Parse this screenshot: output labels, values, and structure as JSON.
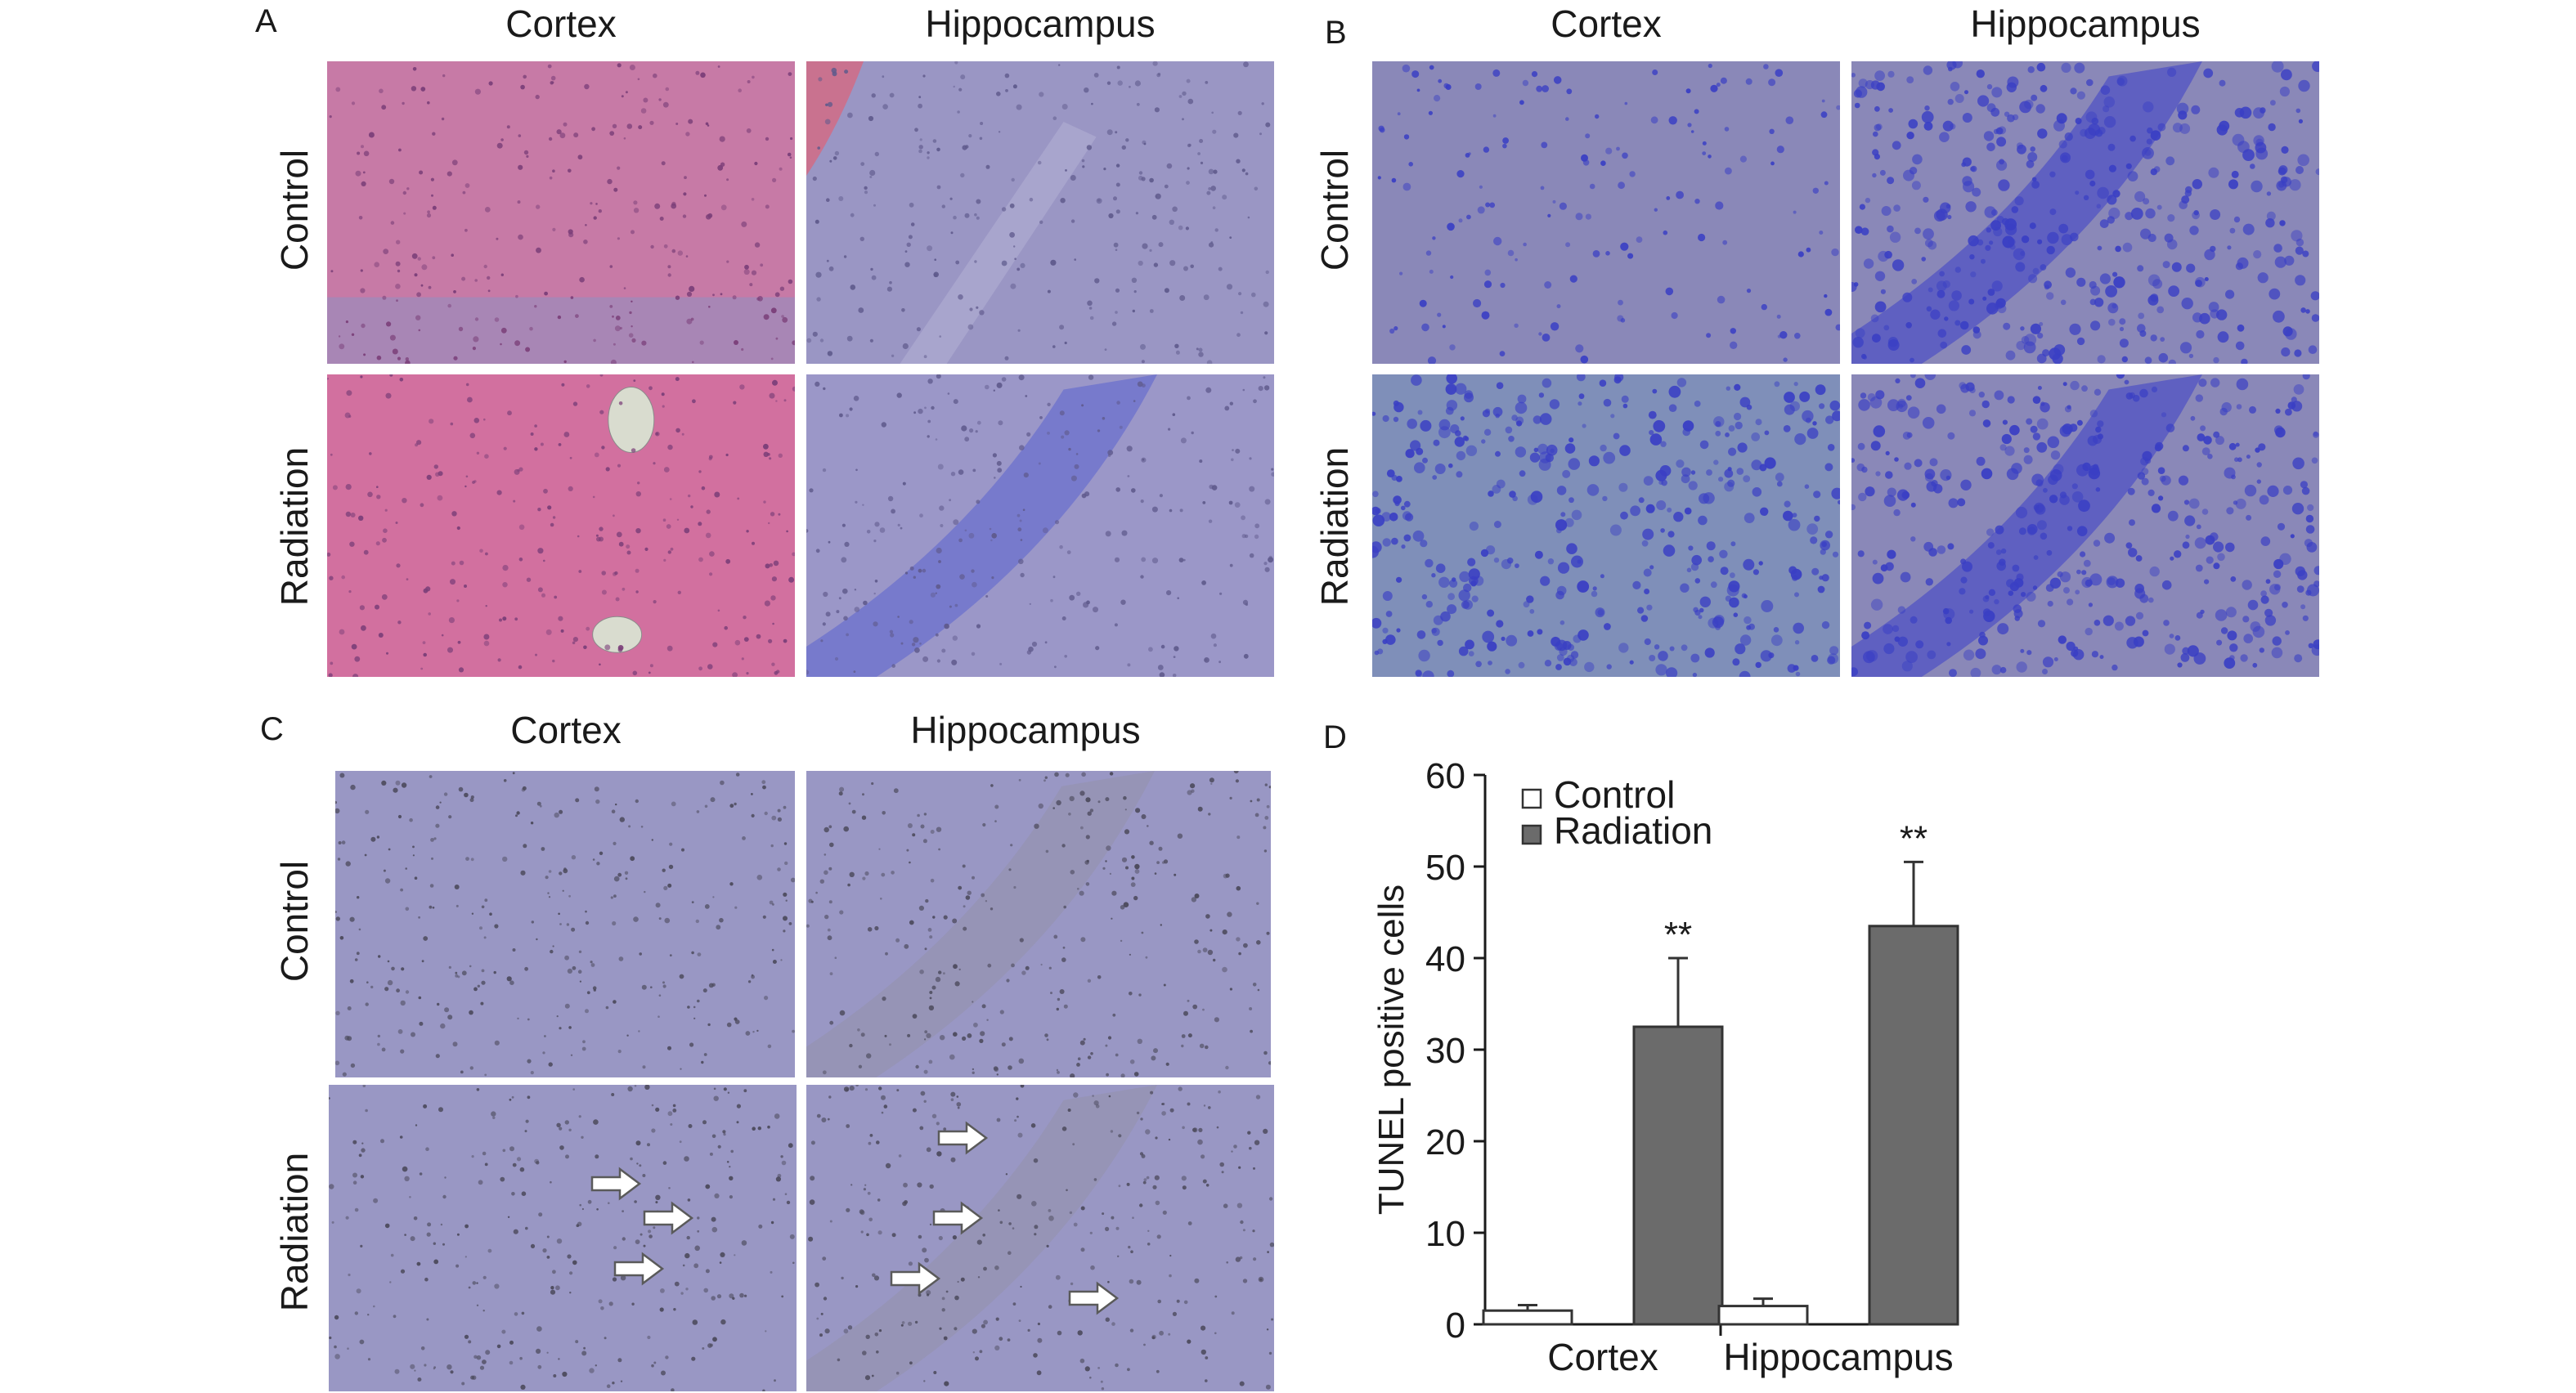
{
  "figure": {
    "panels": [
      {
        "letter": "A",
        "columns": [
          "Cortex",
          "Hippocampus"
        ],
        "rows": [
          "Control",
          "Radiation"
        ],
        "stain_colors": {
          "control_cortex": "#c77aa6",
          "control_hippo": "#9a96c4",
          "radiation_cortex": "#d2709f",
          "radiation_hippo": "#9b97c8"
        }
      },
      {
        "letter": "B",
        "columns": [
          "Cortex",
          "Hippocampus"
        ],
        "rows": [
          "Control",
          "Radiation"
        ],
        "stain_colors": {
          "base": "#8a88b8",
          "nuclei": "#3a3fc4"
        }
      },
      {
        "letter": "C",
        "columns": [
          "Cortex",
          "Hippocampus"
        ],
        "rows": [
          "Control",
          "Radiation"
        ],
        "stain_colors": {
          "base": "#9997c4",
          "nuclei": "#4c4a5c"
        }
      },
      {
        "letter": "D"
      }
    ]
  },
  "chart_data": {
    "type": "bar",
    "categories": [
      "Cortex",
      "Hippocampus"
    ],
    "series": [
      {
        "name": "Control",
        "values": [
          1.5,
          2.0
        ],
        "errors": [
          0.6,
          0.8
        ],
        "color": "#ffffff"
      },
      {
        "name": "Radiation",
        "values": [
          32.5,
          43.5
        ],
        "errors": [
          7.5,
          7.0
        ],
        "color": "#6b6b6b"
      }
    ],
    "significance": [
      "**",
      "**"
    ],
    "title": "",
    "xlabel": "",
    "ylabel": "TUNEL positive cells",
    "ylim": [
      0,
      60
    ],
    "yticks": [
      0,
      10,
      20,
      30,
      40,
      50,
      60
    ],
    "legend_position": "top-left",
    "grid": false
  }
}
